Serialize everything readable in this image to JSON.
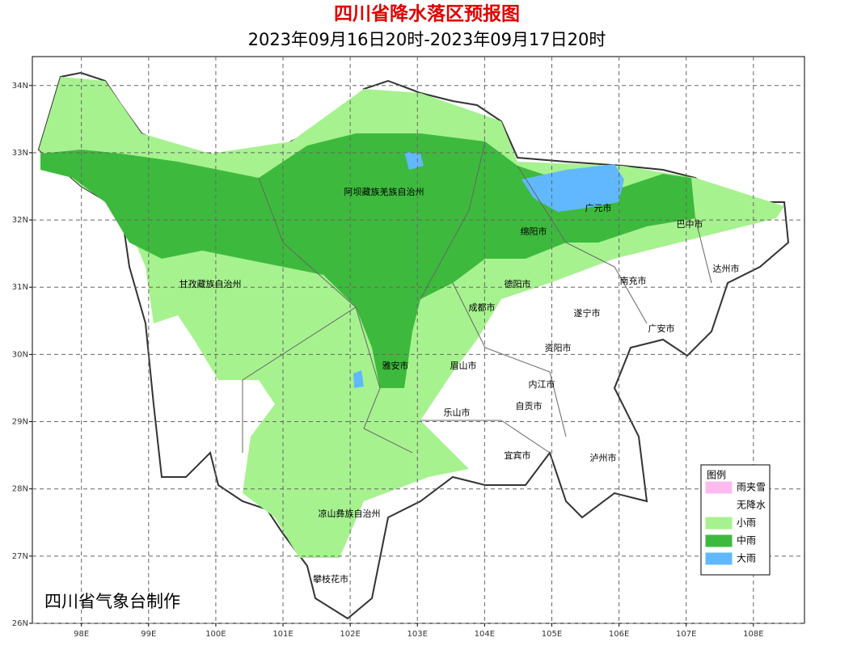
{
  "map": {
    "title": "四川省降水落区预报图",
    "subtitle": "2023年09月16日20时-2023年09月17日20时",
    "xlim": [
      97.27,
      108.76
    ],
    "ylim": [
      26,
      34.43
    ],
    "xticks": [
      {
        "value": 98,
        "label": "98E"
      },
      {
        "value": 99,
        "label": "99E"
      },
      {
        "value": 100,
        "label": "100E"
      },
      {
        "value": 101,
        "label": "101E"
      },
      {
        "value": 102,
        "label": "102E"
      },
      {
        "value": 103,
        "label": "103E"
      },
      {
        "value": 104,
        "label": "104E"
      },
      {
        "value": 105,
        "label": "105E"
      },
      {
        "value": 106,
        "label": "106E"
      },
      {
        "value": 107,
        "label": "107E"
      },
      {
        "value": 108,
        "label": "108E"
      }
    ],
    "yticks": [
      {
        "value": 26,
        "label": "26N"
      },
      {
        "value": 27,
        "label": "27N"
      },
      {
        "value": 28,
        "label": "28N"
      },
      {
        "value": 29,
        "label": "29N"
      },
      {
        "value": 30,
        "label": "30N"
      },
      {
        "value": 31,
        "label": "31N"
      },
      {
        "value": 32,
        "label": "32N"
      },
      {
        "value": 33,
        "label": "33N"
      },
      {
        "value": 34,
        "label": "34N"
      }
    ],
    "cities": [
      "阿坝藏族羌族自治州",
      "甘孜藏族自治州",
      "广元市",
      "巴中市",
      "绵阳市",
      "达州市",
      "南充市",
      "德阳市",
      "成都市",
      "遂宁市",
      "广安市",
      "资阳市",
      "雅安市",
      "眉山市",
      "内江市",
      "自贡市",
      "乐山市",
      "宜宾市",
      "泸州市",
      "凉山彝族自治州",
      "攀枝花市"
    ],
    "legend": {
      "title": "图例",
      "items": [
        {
          "name": "雨夹雪",
          "color": "#ffbbee"
        },
        {
          "name": "无降水",
          "color": "#ffffff"
        },
        {
          "name": "小雨",
          "color": "#a6f28f"
        },
        {
          "name": "中雨",
          "color": "#3dba3d"
        },
        {
          "name": "大雨",
          "color": "#61b8ff"
        }
      ]
    },
    "credit": "四川省气象台制作"
  }
}
